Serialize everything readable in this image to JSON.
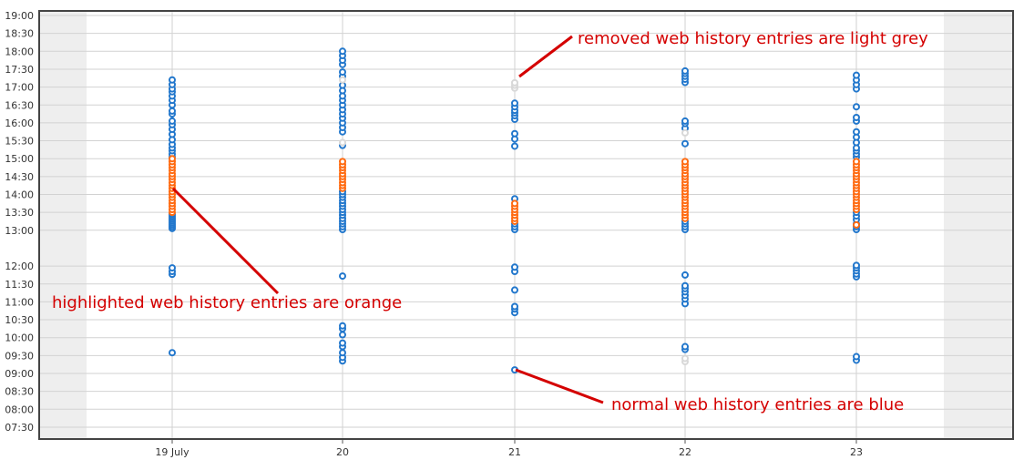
{
  "chart_data": {
    "type": "scatter",
    "title": "",
    "xlabel": "",
    "ylabel": "",
    "categories": [
      "19 July",
      "20",
      "21",
      "22",
      "23"
    ],
    "y_ticks": [
      "19:00",
      "18:30",
      "18:00",
      "17:30",
      "17:00",
      "16:30",
      "16:00",
      "15:30",
      "15:00",
      "14:30",
      "14:00",
      "13:30",
      "13:00",
      "12:00",
      "11:30",
      "11:00",
      "10:30",
      "10:00",
      "09:30",
      "09:00",
      "08:30",
      "08:00",
      "07:30"
    ],
    "y_axis_hours": [
      7.25,
      19.0
    ],
    "grid": true,
    "colors": {
      "normal": "#2277cc",
      "highlighted": "#ff6a10",
      "removed": "#d8d8d8",
      "annotation": "#d40000"
    },
    "series": [
      {
        "points_hours": [
          [
            9.58,
            11.77,
            11.85,
            11.95,
            13.05,
            13.1,
            13.15,
            13.2,
            13.25,
            13.3,
            13.35,
            13.4,
            13.45,
            15.05,
            15.13,
            15.22,
            15.3,
            15.4,
            15.53,
            15.68,
            15.82,
            15.95,
            16.05,
            16.25,
            16.33,
            16.5,
            16.63,
            16.75,
            16.87,
            16.95,
            17.07,
            17.2
          ],
          [
            9.35,
            9.45,
            9.58,
            9.75,
            9.85,
            10.08,
            10.25,
            10.33,
            11.72,
            13.02,
            13.1,
            13.18,
            13.25,
            13.33,
            13.42,
            13.5,
            13.58,
            13.67,
            13.75,
            13.83,
            13.92,
            14.0,
            14.08,
            15.37,
            15.75,
            15.87,
            16.0,
            16.13,
            16.25,
            16.37,
            16.5,
            16.63,
            16.75,
            16.9,
            17.05,
            17.3,
            17.42,
            17.63,
            17.75,
            17.88,
            18.0
          ],
          [
            9.1,
            10.7,
            10.8,
            10.87,
            11.33,
            11.85,
            11.97,
            13.02,
            13.1,
            13.18,
            13.88,
            15.35,
            15.55,
            15.7,
            16.1,
            16.2,
            16.28,
            16.35,
            16.45,
            16.55
          ],
          [
            9.67,
            9.75,
            10.95,
            11.08,
            11.18,
            11.28,
            11.37,
            11.45,
            11.75,
            13.02,
            13.1,
            13.18,
            13.25,
            15.42,
            15.85,
            15.98,
            16.05,
            17.13,
            17.22,
            17.3,
            17.38,
            17.45
          ],
          [
            9.37,
            9.47,
            11.7,
            11.78,
            11.87,
            11.95,
            12.02,
            13.02,
            13.1,
            13.18,
            13.3,
            13.4,
            13.5,
            15.05,
            15.13,
            15.22,
            15.3,
            15.45,
            15.6,
            15.75,
            16.05,
            16.15,
            16.45,
            16.95,
            17.07,
            17.2,
            17.33
          ]
        ]
      },
      {
        "points_hours": [
          [
            13.5,
            13.58,
            13.67,
            13.75,
            13.83,
            13.92,
            14.0,
            14.08,
            14.17,
            14.25,
            14.33,
            14.42,
            14.5,
            14.58,
            14.67,
            14.75,
            14.83,
            14.92,
            15.0
          ],
          [
            14.17,
            14.25,
            14.33,
            14.42,
            14.5,
            14.58,
            14.67,
            14.75,
            14.83,
            14.92
          ],
          [
            13.25,
            13.33,
            13.42,
            13.5,
            13.58,
            13.67,
            13.75
          ],
          [
            13.33,
            13.42,
            13.5,
            13.58,
            13.67,
            13.75,
            13.83,
            13.92,
            14.0,
            14.08,
            14.17,
            14.25,
            14.33,
            14.42,
            14.5,
            14.58,
            14.67,
            14.75,
            14.83,
            14.92
          ],
          [
            13.58,
            13.67,
            13.75,
            13.83,
            13.92,
            14.0,
            14.08,
            14.17,
            14.25,
            14.33,
            14.42,
            14.5,
            14.58,
            14.67,
            14.75,
            14.83,
            14.92,
            13.15
          ]
        ]
      },
      {
        "points_hours": [
          [],
          [
            15.45,
            17.2
          ],
          [
            16.97,
            17.05,
            17.12
          ],
          [
            9.33,
            9.42,
            15.72
          ],
          []
        ]
      }
    ],
    "annotations": [
      "removed web history entries are light grey",
      "highlighted web history entries are orange",
      "normal web history entries are blue"
    ]
  }
}
